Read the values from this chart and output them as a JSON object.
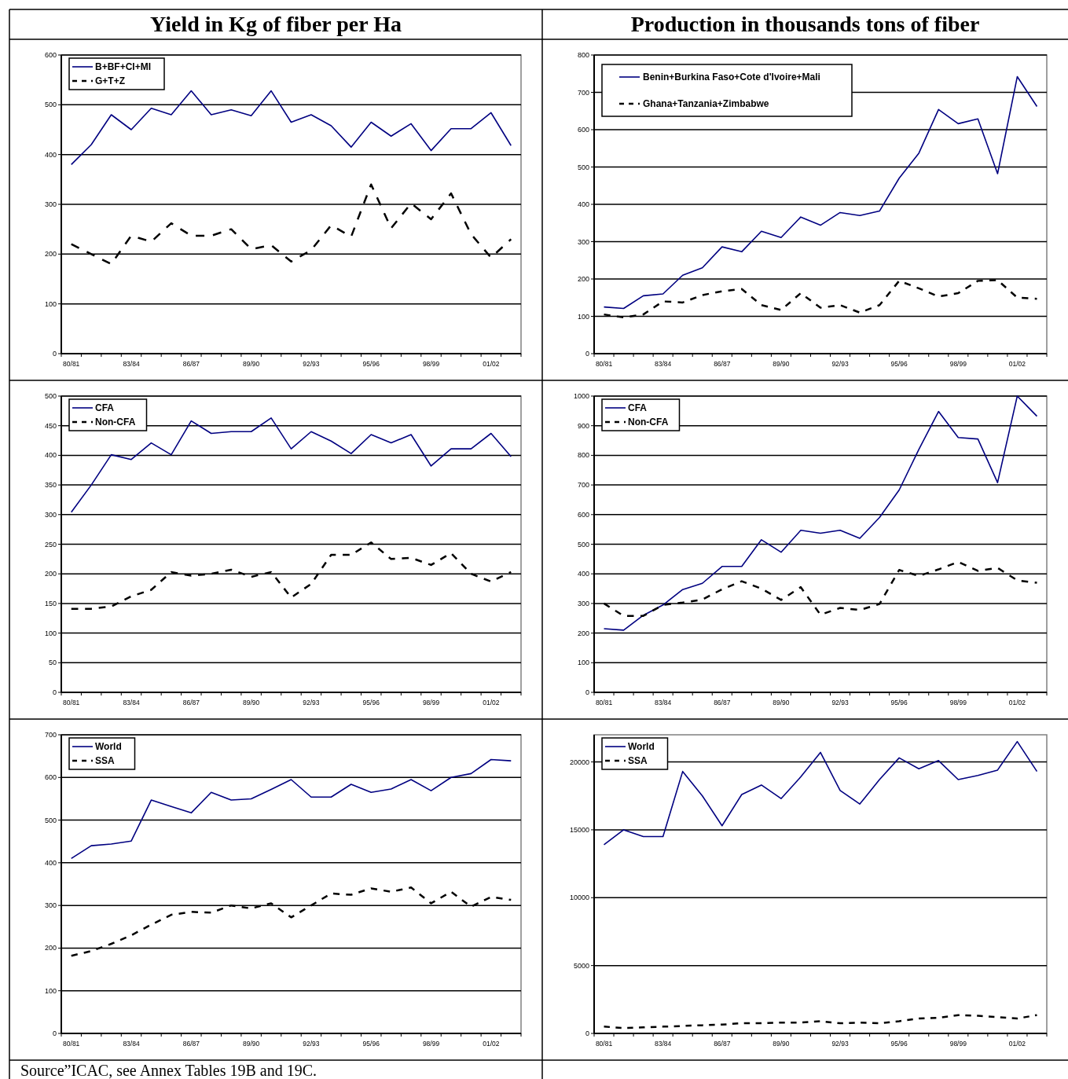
{
  "chart_data": [
    {
      "type": "line",
      "title": "Yield in Kg of fiber per Ha",
      "categories": [
        "80/81",
        null,
        null,
        "83/84",
        null,
        null,
        "86/87",
        null,
        null,
        "89/90",
        null,
        null,
        "92/93",
        null,
        null,
        "95/96",
        null,
        null,
        "98/99",
        null,
        null,
        "01/02",
        null
      ],
      "ylim": [
        0,
        600
      ],
      "yticks": [
        0,
        100,
        200,
        300,
        400,
        500,
        600
      ],
      "grid": "y",
      "legend": "top left",
      "series": [
        {
          "name": "B+BF+CI+MI",
          "color": "#000080",
          "line_style": "solid",
          "values": [
            380,
            420,
            480,
            450,
            493,
            480,
            528,
            480,
            490,
            478,
            528,
            465,
            480,
            458,
            415,
            465,
            437,
            462,
            408,
            452,
            452,
            484,
            418
          ]
        },
        {
          "name": "G+T+Z",
          "color": "#000000",
          "line_style": "dashed",
          "values": [
            220,
            200,
            180,
            237,
            225,
            262,
            237,
            237,
            250,
            210,
            218,
            185,
            208,
            258,
            235,
            340,
            252,
            302,
            270,
            322,
            240,
            193,
            230
          ]
        }
      ]
    },
    {
      "type": "line",
      "title": "Production in thousands tons of fiber",
      "categories": [
        "80/81",
        null,
        null,
        "83/84",
        null,
        null,
        "86/87",
        null,
        null,
        "89/90",
        null,
        null,
        "92/93",
        null,
        null,
        "95/96",
        null,
        null,
        "98/99",
        null,
        null,
        "01/02",
        null
      ],
      "ylim": [
        0,
        800
      ],
      "yticks": [
        0,
        100,
        200,
        300,
        400,
        500,
        600,
        700,
        800
      ],
      "grid": "y",
      "legend": "top left",
      "series": [
        {
          "name": "Benin+Burkina Faso+Cote d'Ivoire+Mali",
          "color": "#000080",
          "line_style": "solid",
          "values": [
            125,
            121,
            155,
            160,
            210,
            230,
            286,
            273,
            328,
            311,
            366,
            344,
            378,
            370,
            382,
            470,
            537,
            654,
            616,
            629,
            482,
            742,
            662
          ]
        },
        {
          "name": "Ghana+Tanzania+Zimbabwe",
          "color": "#000000",
          "line_style": "dashed",
          "values": [
            105,
            97,
            105,
            140,
            137,
            157,
            167,
            173,
            130,
            117,
            162,
            123,
            130,
            110,
            130,
            195,
            175,
            153,
            162,
            195,
            197,
            150,
            147
          ]
        }
      ]
    },
    {
      "type": "line",
      "categories": [
        "80/81",
        null,
        null,
        "83/84",
        null,
        null,
        "86/87",
        null,
        null,
        "89/90",
        null,
        null,
        "92/93",
        null,
        null,
        "95/96",
        null,
        null,
        "98/99",
        null,
        null,
        "01/02",
        null
      ],
      "ylim": [
        0,
        500
      ],
      "yticks": [
        0,
        50,
        100,
        150,
        200,
        250,
        300,
        350,
        400,
        450,
        500
      ],
      "grid": "y",
      "legend": "top left",
      "series": [
        {
          "name": "CFA",
          "color": "#000080",
          "line_style": "solid",
          "values": [
            304,
            350,
            401,
            393,
            421,
            401,
            458,
            437,
            440,
            440,
            463,
            411,
            440,
            424,
            403,
            435,
            421,
            435,
            382,
            411,
            411,
            437,
            398
          ]
        },
        {
          "name": "Non-CFA",
          "color": "#000000",
          "line_style": "dashed",
          "values": [
            141,
            141,
            145,
            162,
            173,
            203,
            197,
            200,
            207,
            195,
            203,
            160,
            183,
            232,
            232,
            253,
            225,
            227,
            215,
            235,
            200,
            187,
            203
          ]
        }
      ]
    },
    {
      "type": "line",
      "categories": [
        "80/81",
        null,
        null,
        "83/84",
        null,
        null,
        "86/87",
        null,
        null,
        "89/90",
        null,
        null,
        "92/93",
        null,
        null,
        "95/96",
        null,
        null,
        "98/99",
        null,
        null,
        "01/02",
        null
      ],
      "ylim": [
        0,
        1000
      ],
      "yticks": [
        0,
        100,
        200,
        300,
        400,
        500,
        600,
        700,
        800,
        900,
        1000
      ],
      "grid": "y",
      "legend": "top left",
      "series": [
        {
          "name": "CFA",
          "color": "#000080",
          "line_style": "solid",
          "values": [
            215,
            210,
            260,
            295,
            347,
            368,
            425,
            425,
            515,
            473,
            547,
            537,
            547,
            520,
            590,
            683,
            820,
            948,
            860,
            855,
            708,
            1000,
            932
          ]
        },
        {
          "name": "Non-CFA",
          "color": "#000000",
          "line_style": "dashed",
          "values": [
            300,
            258,
            258,
            295,
            303,
            313,
            348,
            375,
            350,
            312,
            355,
            262,
            285,
            278,
            298,
            413,
            393,
            415,
            440,
            410,
            420,
            378,
            370
          ]
        }
      ]
    },
    {
      "type": "line",
      "categories": [
        "80/81",
        null,
        null,
        "83/84",
        null,
        null,
        "86/87",
        null,
        null,
        "89/90",
        null,
        null,
        "92/93",
        null,
        null,
        "95/96",
        null,
        null,
        "98/99",
        null,
        null,
        "01/02",
        null
      ],
      "ylim": [
        0,
        700
      ],
      "yticks": [
        0,
        100,
        200,
        300,
        400,
        500,
        600,
        700
      ],
      "grid": "y",
      "legend": "top left",
      "annotations": [
        "Source”ICAC, see Annex Tables 19B and 19C."
      ],
      "series": [
        {
          "name": "World",
          "color": "#000080",
          "line_style": "solid",
          "values": [
            410,
            440,
            444,
            451,
            547,
            532,
            517,
            565,
            547,
            550,
            572,
            595,
            554,
            554,
            584,
            565,
            573,
            595,
            569,
            600,
            609,
            642,
            639
          ]
        },
        {
          "name": "SSA",
          "color": "#000000",
          "line_style": "dashed",
          "values": [
            182,
            193,
            210,
            230,
            255,
            278,
            285,
            283,
            300,
            293,
            305,
            272,
            300,
            328,
            325,
            340,
            332,
            342,
            305,
            332,
            297,
            320,
            313
          ]
        }
      ]
    },
    {
      "type": "line",
      "categories": [
        "80/81",
        null,
        null,
        "83/84",
        null,
        null,
        "86/87",
        null,
        null,
        "89/90",
        null,
        null,
        "92/93",
        null,
        null,
        "95/96",
        null,
        null,
        "98/99",
        null,
        null,
        "01/02",
        null
      ],
      "ylim": [
        0,
        22000
      ],
      "yticks": [
        0,
        5000,
        10000,
        15000,
        20000
      ],
      "grid": "y",
      "legend": "top left",
      "series": [
        {
          "name": "World",
          "color": "#000080",
          "line_style": "solid",
          "values": [
            13900,
            15000,
            14500,
            14500,
            19300,
            17500,
            15300,
            17600,
            18300,
            17300,
            18900,
            20700,
            17900,
            16900,
            18700,
            20300,
            19500,
            20100,
            18700,
            19000,
            19400,
            21500,
            19300
          ]
        },
        {
          "name": "SSA",
          "color": "#000000",
          "line_style": "dashed",
          "values": [
            500,
            400,
            450,
            500,
            550,
            600,
            650,
            750,
            750,
            800,
            800,
            900,
            750,
            800,
            750,
            900,
            1100,
            1150,
            1350,
            1300,
            1200,
            1100,
            1350
          ]
        }
      ]
    }
  ]
}
